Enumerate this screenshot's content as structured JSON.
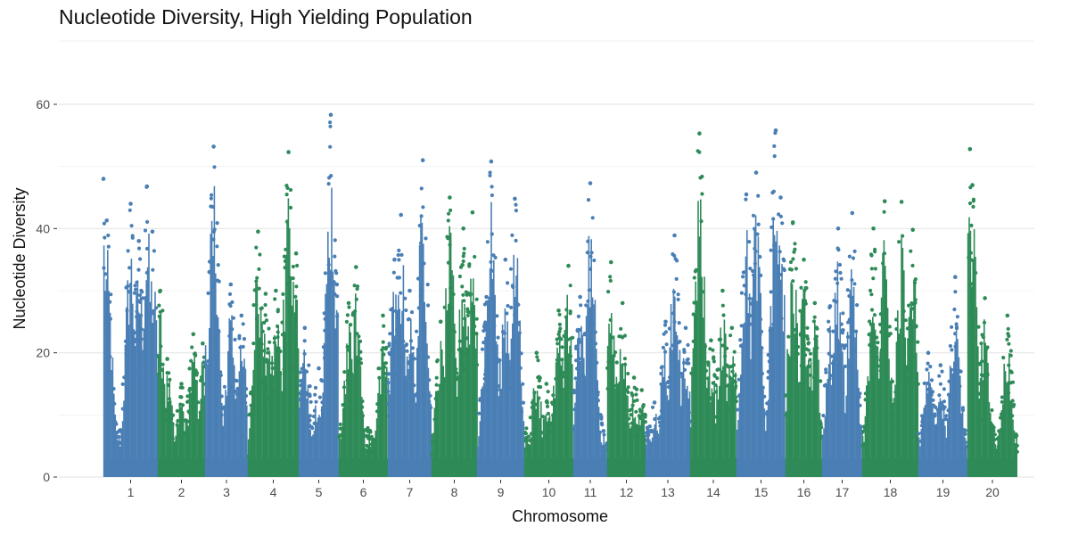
{
  "chart_data": {
    "type": "scatter",
    "subtype": "manhattan",
    "title": "Nucleotide Diversity, High Yielding Population",
    "xlabel": "Chromosome",
    "ylabel": "Nucleotide Diversity",
    "ylim": [
      0,
      65
    ],
    "yticks": [
      0,
      20,
      40,
      60
    ],
    "grid": true,
    "legend": "none",
    "colors": {
      "odd": "#4a7fb5",
      "even": "#2e8b57"
    },
    "chromosomes": [
      {
        "label": "1",
        "color": "#4a7fb5",
        "peaks": [
          [
            0.0,
            48.0
          ],
          [
            0.06,
            41.3
          ],
          [
            0.1,
            23.5
          ],
          [
            0.3,
            5.5
          ],
          [
            0.5,
            44.0
          ],
          [
            0.65,
            38.0
          ],
          [
            0.8,
            46.8
          ],
          [
            0.9,
            39.5
          ]
        ]
      },
      {
        "label": "2",
        "color": "#2e8b57",
        "peaks": [
          [
            0.05,
            30.0
          ],
          [
            0.2,
            19.0
          ],
          [
            0.5,
            15.0
          ],
          [
            0.75,
            23.0
          ],
          [
            0.95,
            21.5
          ]
        ]
      },
      {
        "label": "3",
        "color": "#4a7fb5",
        "peaks": [
          [
            0.1,
            33.0
          ],
          [
            0.2,
            53.2
          ],
          [
            0.6,
            31.0
          ],
          [
            0.85,
            26.0
          ]
        ]
      },
      {
        "label": "4",
        "color": "#2e8b57",
        "peaks": [
          [
            0.2,
            39.5
          ],
          [
            0.35,
            29.5
          ],
          [
            0.55,
            30.0
          ],
          [
            0.8,
            52.3
          ],
          [
            0.95,
            36.0
          ]
        ]
      },
      {
        "label": "5",
        "color": "#4a7fb5",
        "peaks": [
          [
            0.15,
            24.0
          ],
          [
            0.5,
            17.5
          ],
          [
            0.8,
            58.3
          ],
          [
            0.95,
            31.0
          ]
        ]
      },
      {
        "label": "6",
        "color": "#2e8b57",
        "peaks": [
          [
            0.2,
            28.0
          ],
          [
            0.35,
            33.8
          ],
          [
            0.6,
            6.5
          ],
          [
            0.9,
            26.0
          ]
        ]
      },
      {
        "label": "7",
        "color": "#4a7fb5",
        "peaks": [
          [
            0.15,
            35.0
          ],
          [
            0.3,
            42.2
          ],
          [
            0.5,
            30.0
          ],
          [
            0.8,
            51.0
          ]
        ]
      },
      {
        "label": "8",
        "color": "#2e8b57",
        "peaks": [
          [
            0.2,
            25.0
          ],
          [
            0.4,
            45.0
          ],
          [
            0.7,
            40.0
          ],
          [
            0.9,
            42.6
          ]
        ]
      },
      {
        "label": "9",
        "color": "#4a7fb5",
        "peaks": [
          [
            0.2,
            29.0
          ],
          [
            0.3,
            50.8
          ],
          [
            0.6,
            35.0
          ],
          [
            0.8,
            44.8
          ]
        ]
      },
      {
        "label": "10",
        "color": "#2e8b57",
        "peaks": [
          [
            0.25,
            20.0
          ],
          [
            0.45,
            15.0
          ],
          [
            0.7,
            26.8
          ],
          [
            0.9,
            34.0
          ]
        ]
      },
      {
        "label": "11",
        "color": "#4a7fb5",
        "peaks": [
          [
            0.2,
            29.0
          ],
          [
            0.5,
            47.3
          ],
          [
            0.8,
            10.0
          ]
        ]
      },
      {
        "label": "12",
        "color": "#2e8b57",
        "peaks": [
          [
            0.1,
            34.6
          ],
          [
            0.4,
            28.0
          ],
          [
            0.7,
            16.0
          ],
          [
            0.9,
            14.0
          ]
        ]
      },
      {
        "label": "13",
        "color": "#4a7fb5",
        "peaks": [
          [
            0.2,
            12.0
          ],
          [
            0.45,
            25.0
          ],
          [
            0.65,
            38.9
          ],
          [
            0.9,
            24.0
          ]
        ]
      },
      {
        "label": "14",
        "color": "#2e8b57",
        "peaks": [
          [
            0.2,
            55.3
          ],
          [
            0.45,
            22.0
          ],
          [
            0.7,
            30.0
          ],
          [
            0.9,
            24.0
          ]
        ]
      },
      {
        "label": "15",
        "color": "#4a7fb5",
        "peaks": [
          [
            0.2,
            45.5
          ],
          [
            0.4,
            49.0
          ],
          [
            0.8,
            55.8
          ],
          [
            0.9,
            45.0
          ]
        ]
      },
      {
        "label": "16",
        "color": "#2e8b57",
        "peaks": [
          [
            0.2,
            41.0
          ],
          [
            0.5,
            35.0
          ],
          [
            0.8,
            28.0
          ]
        ]
      },
      {
        "label": "17",
        "color": "#4a7fb5",
        "peaks": [
          [
            0.2,
            27.5
          ],
          [
            0.4,
            40.0
          ],
          [
            0.75,
            42.5
          ]
        ]
      },
      {
        "label": "18",
        "color": "#2e8b57",
        "peaks": [
          [
            0.2,
            40.0
          ],
          [
            0.4,
            44.4
          ],
          [
            0.7,
            44.3
          ],
          [
            0.9,
            39.8
          ]
        ]
      },
      {
        "label": "19",
        "color": "#4a7fb5",
        "peaks": [
          [
            0.2,
            20.0
          ],
          [
            0.45,
            18.0
          ],
          [
            0.75,
            32.2
          ]
        ]
      },
      {
        "label": "20",
        "color": "#2e8b57",
        "peaks": [
          [
            0.05,
            52.8
          ],
          [
            0.1,
            47.0
          ],
          [
            0.35,
            28.8
          ],
          [
            0.8,
            26.0
          ]
        ]
      }
    ]
  }
}
